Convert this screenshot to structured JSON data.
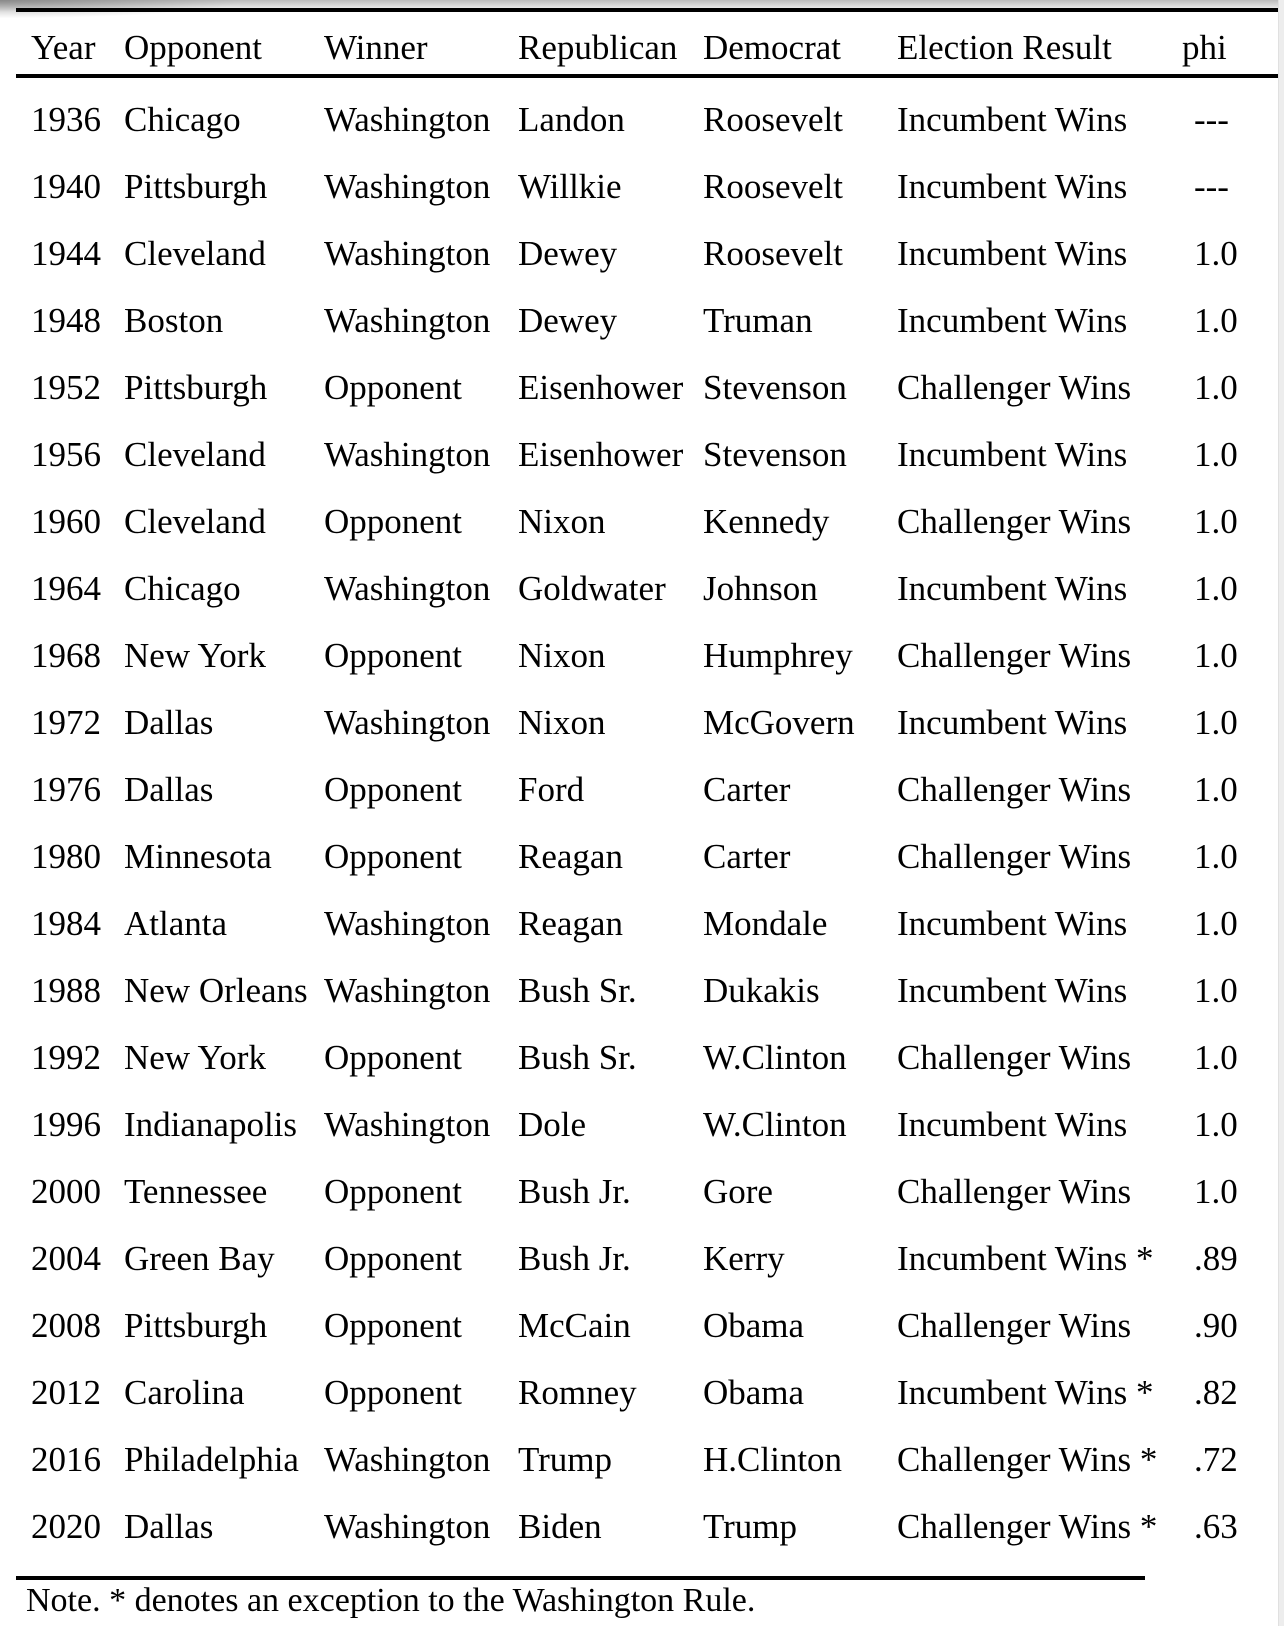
{
  "colors": {
    "text": "#000000",
    "rule": "#000000",
    "background": "#ffffff"
  },
  "note": "Note. * denotes an exception to the Washington Rule.",
  "table": {
    "columns": [
      "Year",
      "Opponent",
      "Winner",
      "Republican",
      "Democrat",
      "Election Result",
      "phi"
    ],
    "rows": [
      {
        "year": "1936",
        "opponent": "Chicago",
        "winner": "Washington",
        "republican": "Landon",
        "democrat": "Roosevelt",
        "result": "Incumbent Wins",
        "phi": "---"
      },
      {
        "year": "1940",
        "opponent": "Pittsburgh",
        "winner": "Washington",
        "republican": "Willkie",
        "democrat": "Roosevelt",
        "result": "Incumbent Wins",
        "phi": "---"
      },
      {
        "year": "1944",
        "opponent": "Cleveland",
        "winner": "Washington",
        "republican": "Dewey",
        "democrat": "Roosevelt",
        "result": "Incumbent Wins",
        "phi": "1.0"
      },
      {
        "year": "1948",
        "opponent": "Boston",
        "winner": "Washington",
        "republican": "Dewey",
        "democrat": "Truman",
        "result": "Incumbent Wins",
        "phi": "1.0"
      },
      {
        "year": "1952",
        "opponent": "Pittsburgh",
        "winner": "Opponent",
        "republican": "Eisenhower",
        "democrat": "Stevenson",
        "result": "Challenger Wins",
        "phi": "1.0"
      },
      {
        "year": "1956",
        "opponent": "Cleveland",
        "winner": "Washington",
        "republican": "Eisenhower",
        "democrat": "Stevenson",
        "result": "Incumbent Wins",
        "phi": "1.0"
      },
      {
        "year": "1960",
        "opponent": "Cleveland",
        "winner": "Opponent",
        "republican": "Nixon",
        "democrat": "Kennedy",
        "result": "Challenger Wins",
        "phi": "1.0"
      },
      {
        "year": "1964",
        "opponent": "Chicago",
        "winner": "Washington",
        "republican": "Goldwater",
        "democrat": "Johnson",
        "result": "Incumbent Wins",
        "phi": "1.0"
      },
      {
        "year": "1968",
        "opponent": "New York",
        "winner": "Opponent",
        "republican": "Nixon",
        "democrat": "Humphrey",
        "result": "Challenger Wins",
        "phi": "1.0"
      },
      {
        "year": "1972",
        "opponent": "Dallas",
        "winner": "Washington",
        "republican": "Nixon",
        "democrat": "McGovern",
        "result": "Incumbent Wins",
        "phi": "1.0"
      },
      {
        "year": "1976",
        "opponent": "Dallas",
        "winner": "Opponent",
        "republican": "Ford",
        "democrat": "Carter",
        "result": "Challenger Wins",
        "phi": "1.0"
      },
      {
        "year": "1980",
        "opponent": "Minnesota",
        "winner": "Opponent",
        "republican": "Reagan",
        "democrat": "Carter",
        "result": "Challenger Wins",
        "phi": "1.0"
      },
      {
        "year": "1984",
        "opponent": "Atlanta",
        "winner": "Washington",
        "republican": "Reagan",
        "democrat": "Mondale",
        "result": "Incumbent Wins",
        "phi": "1.0"
      },
      {
        "year": "1988",
        "opponent": "New Orleans",
        "winner": "Washington",
        "republican": "Bush Sr.",
        "democrat": "Dukakis",
        "result": "Incumbent Wins",
        "phi": "1.0"
      },
      {
        "year": "1992",
        "opponent": "New York",
        "winner": "Opponent",
        "republican": "Bush Sr.",
        "democrat": "W.Clinton",
        "result": "Challenger Wins",
        "phi": "1.0"
      },
      {
        "year": "1996",
        "opponent": "Indianapolis",
        "winner": "Washington",
        "republican": "Dole",
        "democrat": "W.Clinton",
        "result": "Incumbent Wins",
        "phi": "1.0"
      },
      {
        "year": "2000",
        "opponent": "Tennessee",
        "winner": "Opponent",
        "republican": "Bush Jr.",
        "democrat": "Gore",
        "result": "Challenger Wins",
        "phi": "1.0"
      },
      {
        "year": "2004",
        "opponent": "Green Bay",
        "winner": "Opponent",
        "republican": "Bush Jr.",
        "democrat": "Kerry",
        "result": "Incumbent Wins *",
        "phi": ".89"
      },
      {
        "year": "2008",
        "opponent": "Pittsburgh",
        "winner": "Opponent",
        "republican": "McCain",
        "democrat": "Obama",
        "result": "Challenger Wins",
        "phi": ".90"
      },
      {
        "year": "2012",
        "opponent": "Carolina",
        "winner": "Opponent",
        "republican": "Romney",
        "democrat": "Obama",
        "result": "Incumbent Wins *",
        "phi": ".82"
      },
      {
        "year": "2016",
        "opponent": "Philadelphia",
        "winner": "Washington",
        "republican": "Trump",
        "democrat": "H.Clinton",
        "result": "Challenger Wins *",
        "phi": ".72"
      },
      {
        "year": "2020",
        "opponent": "Dallas",
        "winner": "Washington",
        "republican": "Biden",
        "democrat": "Trump",
        "result": "Challenger Wins *",
        "phi": ".63"
      }
    ]
  }
}
